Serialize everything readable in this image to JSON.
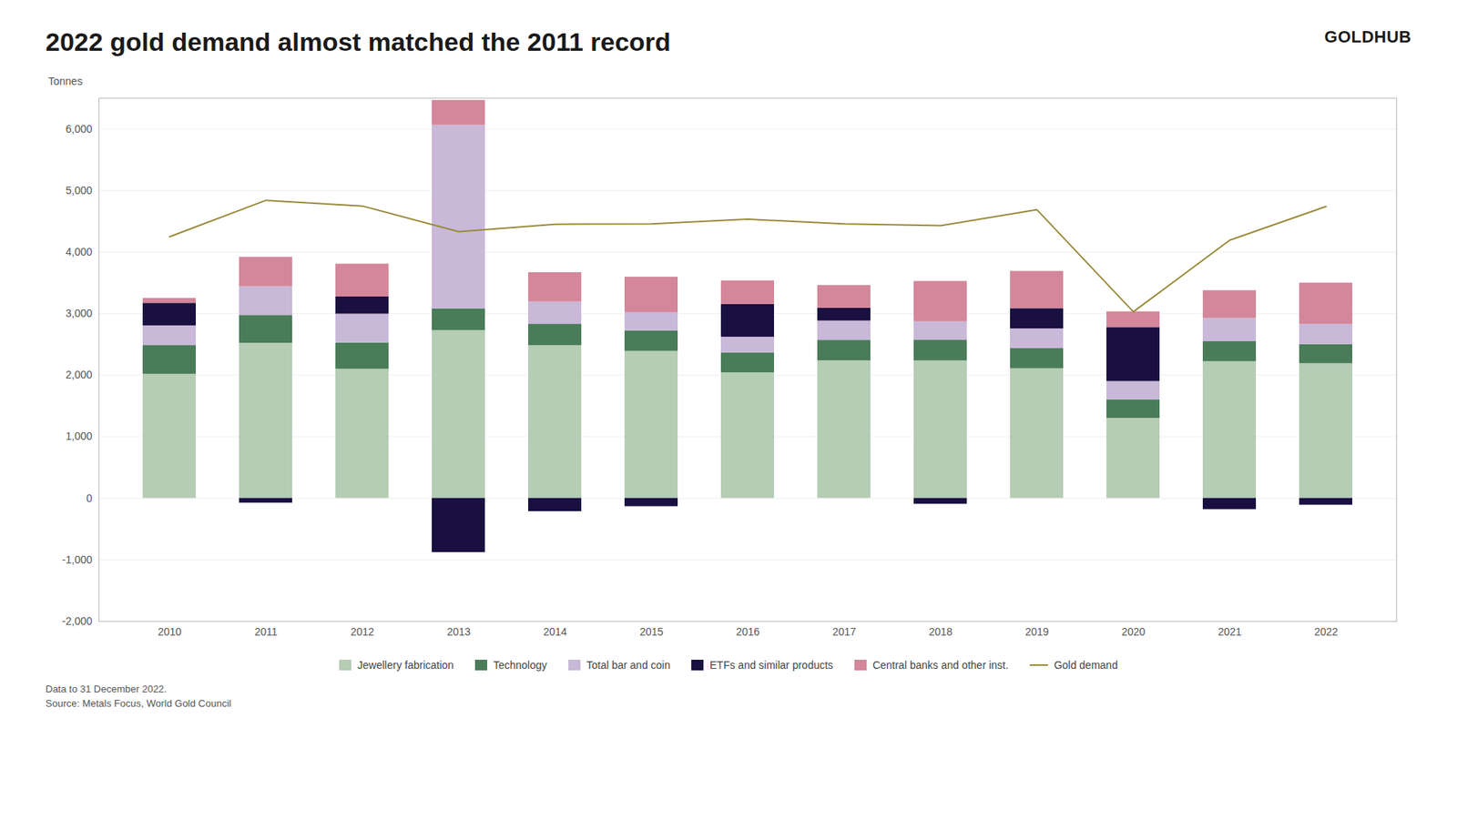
{
  "chart_data": {
    "type": "bar",
    "title": "2022 gold demand almost matched the 2011 record",
    "ylabel": "Tonnes",
    "annotations": [
      "GOLDHUB",
      "Data to 31 December 2022.",
      "Source: Metals Focus, World Gold Council"
    ],
    "categories": [
      "2010",
      "2011",
      "2012",
      "2013",
      "2014",
      "2015",
      "2016",
      "2017",
      "2018",
      "2019",
      "2020",
      "2021",
      "2022"
    ],
    "series": [
      {
        "name": "Jewellery fabrication",
        "type": "bar",
        "color": "#b5ccb5",
        "values": [
          2017,
          2521,
          2098,
          2726,
          2482,
          2389,
          2041,
          2235,
          2234,
          2107,
          1301,
          2221,
          2190
        ]
      },
      {
        "name": "Technology",
        "type": "bar",
        "color": "#4a7c59",
        "values": [
          466,
          452,
          428,
          354,
          346,
          331,
          324,
          333,
          335,
          327,
          302,
          330,
          309
        ]
      },
      {
        "name": "Total bar and coin",
        "type": "bar",
        "color": "#c9b8d8",
        "values": [
          320,
          465,
          468,
          2980,
          362,
          296,
          254,
          314,
          300,
          320,
          296,
          374,
          326
        ]
      },
      {
        "name": "ETFs and similar products",
        "type": "bar",
        "color": "#1a1040",
        "values": [
          367,
          -76,
          279,
          -880,
          -215,
          -134,
          532,
          206,
          -95,
          329,
          877,
          -182,
          -110
        ]
      },
      {
        "name": "Central banks and other inst.",
        "type": "bar",
        "color": "#d4879a",
        "values": [
          79,
          479,
          533,
          406,
          477,
          577,
          383,
          371,
          656,
          605,
          255,
          450,
          673
        ]
      },
      {
        "name": "Gold demand",
        "type": "line",
        "color": "#9a8a3a",
        "values": [
          4249,
          4841,
          4749,
          4332,
          4452,
          4459,
          4534,
          4459,
          4430,
          4688,
          3031,
          4193,
          4742
        ]
      }
    ],
    "stacked": true,
    "ylim": [
      -2000,
      6500
    ],
    "yticks": [
      {
        "value": -2000,
        "label": "-2,000"
      },
      {
        "value": -1000,
        "label": "-1,000"
      },
      0,
      {
        "value": 1000,
        "label": "1,000"
      },
      {
        "value": 2000,
        "label": "2,000"
      },
      {
        "value": 3000,
        "label": "3,000"
      },
      {
        "value": 4000,
        "label": "4,000"
      },
      {
        "value": 5000,
        "label": "5,000"
      },
      {
        "value": 6000,
        "label": "6,000"
      }
    ],
    "grid": true,
    "legend": "bottom"
  }
}
